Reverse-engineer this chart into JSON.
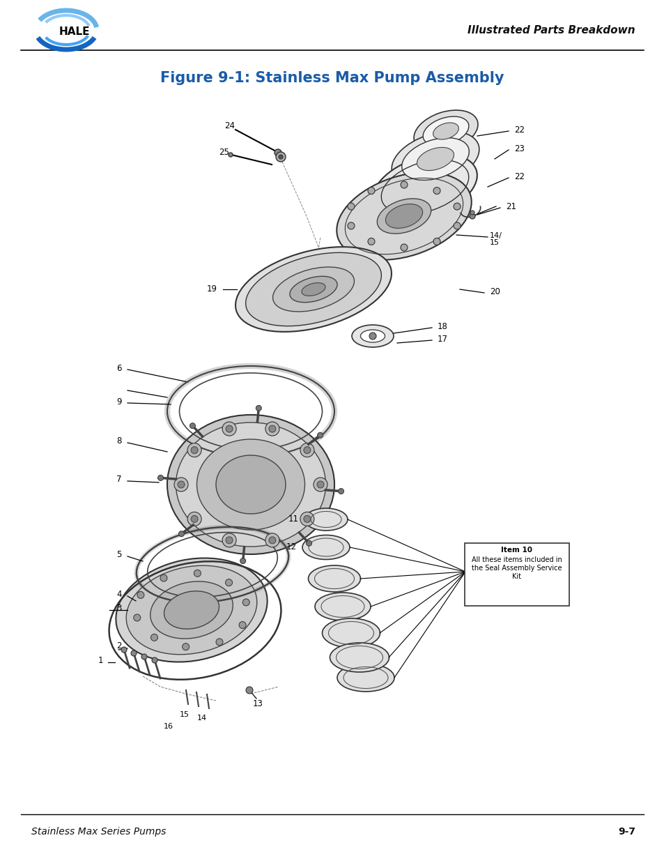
{
  "title": "Figure 9-1: Stainless Max Pump Assembly",
  "title_color": "#1a5ca8",
  "title_fontsize": 15,
  "header_right_text": "Illustrated Parts Breakdown",
  "footer_left_text": "Stainless Max Series Pumps",
  "footer_right_text": "9-7",
  "footer_fontsize": 10,
  "bg_color": "#ffffff",
  "page_width": 9.54,
  "page_height": 12.35
}
